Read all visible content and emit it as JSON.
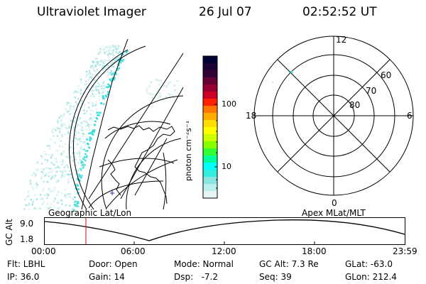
{
  "header": {
    "instrument": "Ultraviolet Imager",
    "date": "26 Jul 07",
    "time": "02:52:52 UT"
  },
  "colorbar": {
    "unit_label": "photon cm⁻²s⁻¹",
    "ticks": [
      "100",
      "10"
    ],
    "colors": [
      "#000033",
      "#1a0033",
      "#330033",
      "#660033",
      "#990033",
      "#cc0022",
      "#ff2200",
      "#ff7700",
      "#ffaa00",
      "#ffdd00",
      "#ffff00",
      "#ccff00",
      "#88ff00",
      "#33ff33",
      "#00ff99",
      "#00ffff",
      "#33eedd",
      "#88e6e0",
      "#bbeeee",
      "#e6f5f5"
    ]
  },
  "polar_plot": {
    "mlt_labels": {
      "top": "12",
      "right": "6",
      "bottom": "0",
      "left": "18"
    },
    "lat_labels": [
      "60",
      "70",
      "80"
    ]
  },
  "altitude_strip": {
    "left_label": "Geographic Lat/Lon",
    "right_label": "Apex MLat/MLT",
    "axis_label": "GC Alt",
    "y_ticks": [
      "9.0",
      "1.8"
    ],
    "x_ticks": [
      "00:00",
      "06:00",
      "12:00",
      "18:00",
      "23:59"
    ]
  },
  "info": {
    "flt": "Flt: LBHL",
    "door": "Door: Open",
    "mode": "Mode: Normal",
    "gcalt": "GC Alt: 7.3 Re",
    "glat": "GLat: -63.0",
    "ip": "IP: 36.0",
    "gain": "Gain: 14",
    "dsp": "Dsp:   -7.2",
    "seq": "Seq: 39",
    "glon": "GLon: 212.4"
  }
}
